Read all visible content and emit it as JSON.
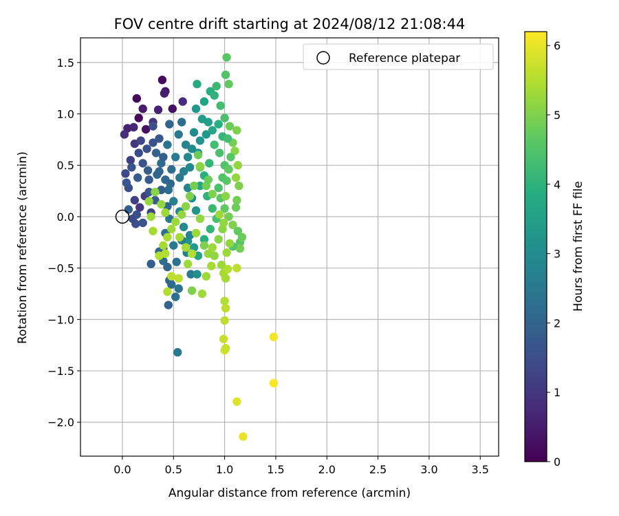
{
  "chart_data": {
    "type": "scatter",
    "title": "FOV centre drift starting at 2024/08/12 21:08:44",
    "xlabel": "Angular distance from reference (arcmin)",
    "ylabel": "Rotation from reference (arcmin)",
    "xlim": [
      -0.41,
      3.68
    ],
    "ylim": [
      -2.33,
      1.74
    ],
    "xticks": [
      0.0,
      0.5,
      1.0,
      1.5,
      2.0,
      2.5,
      3.0,
      3.5
    ],
    "xtick_labels": [
      "0.0",
      "0.5",
      "1.0",
      "1.5",
      "2.0",
      "2.5",
      "3.0",
      "3.5"
    ],
    "yticks": [
      1.5,
      1.0,
      0.5,
      0.0,
      -0.5,
      -1.0,
      -1.5,
      -2.0
    ],
    "ytick_labels": [
      "1.5",
      "1.0",
      "0.5",
      "0.0",
      "−0.5",
      "−1.0",
      "−1.5",
      "−2.0"
    ],
    "grid": true,
    "legend": {
      "placement": "top-right",
      "label": "Reference platepar"
    },
    "reference_point": {
      "x": 0.0,
      "y": 0.0
    },
    "colorbar": {
      "label": "Hours from first FF file",
      "range": [
        0,
        6.2
      ],
      "ticks": [
        0,
        1,
        2,
        3,
        4,
        5,
        6
      ],
      "tick_labels": [
        "0",
        "1",
        "2",
        "3",
        "4",
        "5",
        "6"
      ],
      "colormap": "viridis"
    },
    "points": [
      [
        0.14,
        1.15,
        0.1
      ],
      [
        0.39,
        1.33,
        0.2
      ],
      [
        0.42,
        1.22,
        0.4
      ],
      [
        0.16,
        0.96,
        0.2
      ],
      [
        0.23,
        0.85,
        0.3
      ],
      [
        0.05,
        0.86,
        0.6
      ],
      [
        0.11,
        0.87,
        0.7
      ],
      [
        0.02,
        0.8,
        0.8
      ],
      [
        0.2,
        1.05,
        0.5
      ],
      [
        0.35,
        1.04,
        0.6
      ],
      [
        0.49,
        1.05,
        0.3
      ],
      [
        0.59,
        1.12,
        0.8
      ],
      [
        0.41,
        1.2,
        0.5
      ],
      [
        0.3,
        0.92,
        1.0
      ],
      [
        0.12,
        0.71,
        1.0
      ],
      [
        0.18,
        0.74,
        1.3
      ],
      [
        0.08,
        0.55,
        1.2
      ],
      [
        0.03,
        0.42,
        1.4
      ],
      [
        0.06,
        0.28,
        1.5
      ],
      [
        0.04,
        0.33,
        1.7
      ],
      [
        0.12,
        0.16,
        1.2
      ],
      [
        0.17,
        0.09,
        1.0
      ],
      [
        0.22,
        0.2,
        1.1
      ],
      [
        0.28,
        0.04,
        1.3
      ],
      [
        0.09,
        0.48,
        1.6
      ],
      [
        0.15,
        0.38,
        1.8
      ],
      [
        0.25,
        0.45,
        1.9
      ],
      [
        0.33,
        0.62,
        2.0
      ],
      [
        0.38,
        0.52,
        2.2
      ],
      [
        0.44,
        0.7,
        2.4
      ],
      [
        0.47,
        0.32,
        2.1
      ],
      [
        0.52,
        0.58,
        2.6
      ],
      [
        0.55,
        0.8,
        2.5
      ],
      [
        0.3,
        0.88,
        1.5
      ],
      [
        0.36,
        0.76,
        1.7
      ],
      [
        0.46,
        0.9,
        2.0
      ],
      [
        0.58,
        0.92,
        2.3
      ],
      [
        0.62,
        0.7,
        2.8
      ],
      [
        0.66,
        0.48,
        2.9
      ],
      [
        0.7,
        0.82,
        3.0
      ],
      [
        0.72,
        1.05,
        3.3
      ],
      [
        0.74,
        0.62,
        3.1
      ],
      [
        0.78,
        0.95,
        3.4
      ],
      [
        0.8,
        1.12,
        3.6
      ],
      [
        0.73,
        1.29,
        3.8
      ],
      [
        0.86,
        1.22,
        3.9
      ],
      [
        0.9,
        1.18,
        4.0
      ],
      [
        0.92,
        1.27,
        4.2
      ],
      [
        0.96,
        1.08,
        4.3
      ],
      [
        1.01,
        1.38,
        4.5
      ],
      [
        1.02,
        1.55,
        4.6
      ],
      [
        1.04,
        1.29,
        4.7
      ],
      [
        1.0,
        0.96,
        4.4
      ],
      [
        1.05,
        0.88,
        4.8
      ],
      [
        1.08,
        0.72,
        4.9
      ],
      [
        1.12,
        0.84,
        5.0
      ],
      [
        1.1,
        0.64,
        5.1
      ],
      [
        1.13,
        0.5,
        5.2
      ],
      [
        1.11,
        0.38,
        5.2
      ],
      [
        1.14,
        0.3,
        5.0
      ],
      [
        1.12,
        0.16,
        4.9
      ],
      [
        1.11,
        0.09,
        4.8
      ],
      [
        1.13,
        -0.14,
        4.7
      ],
      [
        1.15,
        -0.25,
        4.6
      ],
      [
        1.17,
        -0.2,
        4.8
      ],
      [
        1.15,
        -0.31,
        4.9
      ],
      [
        1.08,
        -0.29,
        4.5
      ],
      [
        1.02,
        0.35,
        4.6
      ],
      [
        1.0,
        0.5,
        4.5
      ],
      [
        0.95,
        0.62,
        4.4
      ],
      [
        0.9,
        0.7,
        4.3
      ],
      [
        0.85,
        0.52,
        4.1
      ],
      [
        0.8,
        0.4,
        3.9
      ],
      [
        0.76,
        0.3,
        3.7
      ],
      [
        0.83,
        0.2,
        4.0
      ],
      [
        0.88,
        0.08,
        4.2
      ],
      [
        0.92,
        -0.02,
        4.4
      ],
      [
        0.86,
        -0.12,
        4.1
      ],
      [
        0.8,
        -0.22,
        3.9
      ],
      [
        0.74,
        -0.38,
        3.6
      ],
      [
        0.7,
        -0.3,
        3.4
      ],
      [
        0.64,
        -0.24,
        3.2
      ],
      [
        0.6,
        -0.1,
        3.0
      ],
      [
        0.56,
        0.05,
        2.9
      ],
      [
        0.5,
        0.15,
        2.7
      ],
      [
        0.46,
        -0.02,
        2.5
      ],
      [
        0.42,
        -0.16,
        2.3
      ],
      [
        0.4,
        -0.31,
        2.1
      ],
      [
        0.44,
        -0.49,
        2.0
      ],
      [
        0.46,
        -0.62,
        2.1
      ],
      [
        0.48,
        -0.66,
        2.2
      ],
      [
        0.45,
        -0.86,
        2.0
      ],
      [
        0.52,
        -0.78,
        2.3
      ],
      [
        0.55,
        -0.7,
        2.4
      ],
      [
        0.67,
        -0.56,
        2.6
      ],
      [
        0.73,
        -0.56,
        3.1
      ],
      [
        0.28,
        -0.46,
        1.9
      ],
      [
        0.54,
        -1.32,
        2.5
      ],
      [
        0.4,
        -0.43,
        2.2
      ],
      [
        0.36,
        -0.34,
        2.1
      ],
      [
        0.2,
        -0.06,
        1.6
      ],
      [
        0.13,
        -0.07,
        1.5
      ],
      [
        0.1,
        -0.02,
        1.4
      ],
      [
        0.06,
        0.07,
        1.9
      ],
      [
        0.14,
        0.02,
        1.5
      ],
      [
        0.63,
        -0.35,
        2.7
      ],
      [
        0.58,
        -0.23,
        2.6
      ],
      [
        0.66,
        -0.18,
        2.8
      ],
      [
        0.5,
        -0.28,
        2.5
      ],
      [
        0.53,
        -0.44,
        2.4
      ],
      [
        0.45,
        0.26,
        2.2
      ],
      [
        0.34,
        0.41,
        2.0
      ],
      [
        0.26,
        0.36,
        1.8
      ],
      [
        0.2,
        0.52,
        1.6
      ],
      [
        0.16,
        0.62,
        1.4
      ],
      [
        0.24,
        0.66,
        1.5
      ],
      [
        0.3,
        0.72,
        1.6
      ],
      [
        0.4,
        0.58,
        1.9
      ],
      [
        0.48,
        0.46,
        2.2
      ],
      [
        0.56,
        0.38,
        2.5
      ],
      [
        0.64,
        0.28,
        2.8
      ],
      [
        0.68,
        0.18,
        3.0
      ],
      [
        0.72,
        0.06,
        3.2
      ],
      [
        0.26,
        0.24,
        1.7
      ],
      [
        0.32,
        0.16,
        1.8
      ],
      [
        0.38,
        0.26,
        1.9
      ],
      [
        0.44,
        0.1,
        2.1
      ],
      [
        0.36,
        0.44,
        2.0
      ],
      [
        0.42,
        0.36,
        2.1
      ],
      [
        0.6,
        0.44,
        2.7
      ],
      [
        0.64,
        0.58,
        2.9
      ],
      [
        0.68,
        0.66,
        3.0
      ],
      [
        0.76,
        0.74,
        3.2
      ],
      [
        0.82,
        0.8,
        3.3
      ],
      [
        0.84,
        0.92,
        3.5
      ],
      [
        0.88,
        0.84,
        3.7
      ],
      [
        0.94,
        0.9,
        3.9
      ],
      [
        0.98,
        0.78,
        4.1
      ],
      [
        1.03,
        0.76,
        4.3
      ],
      [
        1.06,
        0.58,
        4.6
      ],
      [
        1.04,
        0.46,
        4.7
      ],
      [
        0.98,
        0.38,
        4.5
      ],
      [
        0.94,
        0.28,
        4.4
      ],
      [
        0.96,
        0.18,
        4.6
      ],
      [
        1.0,
        0.08,
        4.7
      ],
      [
        1.04,
        0.0,
        4.9
      ],
      [
        1.08,
        -0.08,
        5.0
      ],
      [
        0.98,
        -0.12,
        5.1
      ],
      [
        0.94,
        -0.22,
        5.1
      ],
      [
        0.9,
        -0.38,
        5.2
      ],
      [
        0.97,
        -0.47,
        5.3
      ],
      [
        0.99,
        -0.55,
        5.4
      ],
      [
        1.01,
        -0.6,
        5.4
      ],
      [
        1.03,
        -0.51,
        5.5
      ],
      [
        1.12,
        -0.5,
        5.6
      ],
      [
        1.0,
        -0.82,
        5.5
      ],
      [
        1.01,
        -0.89,
        5.6
      ],
      [
        1.0,
        -1.01,
        5.6
      ],
      [
        0.99,
        -1.19,
        5.7
      ],
      [
        1.0,
        -1.3,
        5.8
      ],
      [
        1.01,
        -1.28,
        5.7
      ],
      [
        1.48,
        -1.17,
        6.1
      ],
      [
        1.48,
        -1.62,
        6.2
      ],
      [
        1.12,
        -1.8,
        5.9
      ],
      [
        1.18,
        -2.14,
        6.0
      ],
      [
        1.02,
        -0.35,
        5.3
      ],
      [
        1.05,
        -0.26,
        5.2
      ],
      [
        0.99,
        -0.06,
        5.2
      ],
      [
        0.95,
        0.02,
        5.3
      ],
      [
        1.01,
        0.2,
        5.1
      ],
      [
        0.88,
        0.22,
        5.0
      ],
      [
        0.82,
        0.3,
        4.9
      ],
      [
        0.76,
        0.48,
        4.7
      ],
      [
        0.84,
        0.36,
        4.8
      ],
      [
        0.7,
        0.3,
        4.9
      ],
      [
        0.66,
        0.2,
        5.0
      ],
      [
        0.62,
        0.1,
        5.1
      ],
      [
        0.58,
        0.02,
        5.2
      ],
      [
        0.52,
        -0.05,
        5.3
      ],
      [
        0.48,
        -0.12,
        5.3
      ],
      [
        0.44,
        -0.2,
        5.4
      ],
      [
        0.4,
        -0.28,
        5.4
      ],
      [
        0.36,
        -0.38,
        5.5
      ],
      [
        0.42,
        -0.36,
        5.5
      ],
      [
        0.48,
        -0.58,
        5.6
      ],
      [
        0.44,
        -0.73,
        5.5
      ],
      [
        0.55,
        -0.6,
        5.6
      ],
      [
        0.3,
        -0.14,
        5.4
      ],
      [
        0.28,
        0.0,
        5.3
      ],
      [
        0.26,
        0.15,
        5.2
      ],
      [
        0.32,
        0.24,
        5.1
      ],
      [
        0.38,
        0.12,
        5.2
      ],
      [
        0.42,
        0.04,
        5.3
      ],
      [
        0.56,
        -0.2,
        5.4
      ],
      [
        0.62,
        -0.3,
        5.4
      ],
      [
        0.68,
        -0.36,
        5.5
      ],
      [
        0.64,
        -0.46,
        5.3
      ],
      [
        0.72,
        -0.16,
        5.3
      ],
      [
        0.76,
        -0.02,
        5.2
      ],
      [
        0.8,
        -0.28,
        5.0
      ],
      [
        0.84,
        -0.36,
        5.2
      ],
      [
        0.88,
        -0.3,
        5.3
      ],
      [
        0.87,
        -0.48,
        5.4
      ],
      [
        0.82,
        -0.58,
        5.3
      ],
      [
        0.78,
        -0.75,
        5.3
      ],
      [
        0.68,
        -0.72,
        5.0
      ],
      [
        0.76,
        0.49,
        5.1
      ],
      [
        0.74,
        0.6,
        4.8
      ]
    ]
  }
}
